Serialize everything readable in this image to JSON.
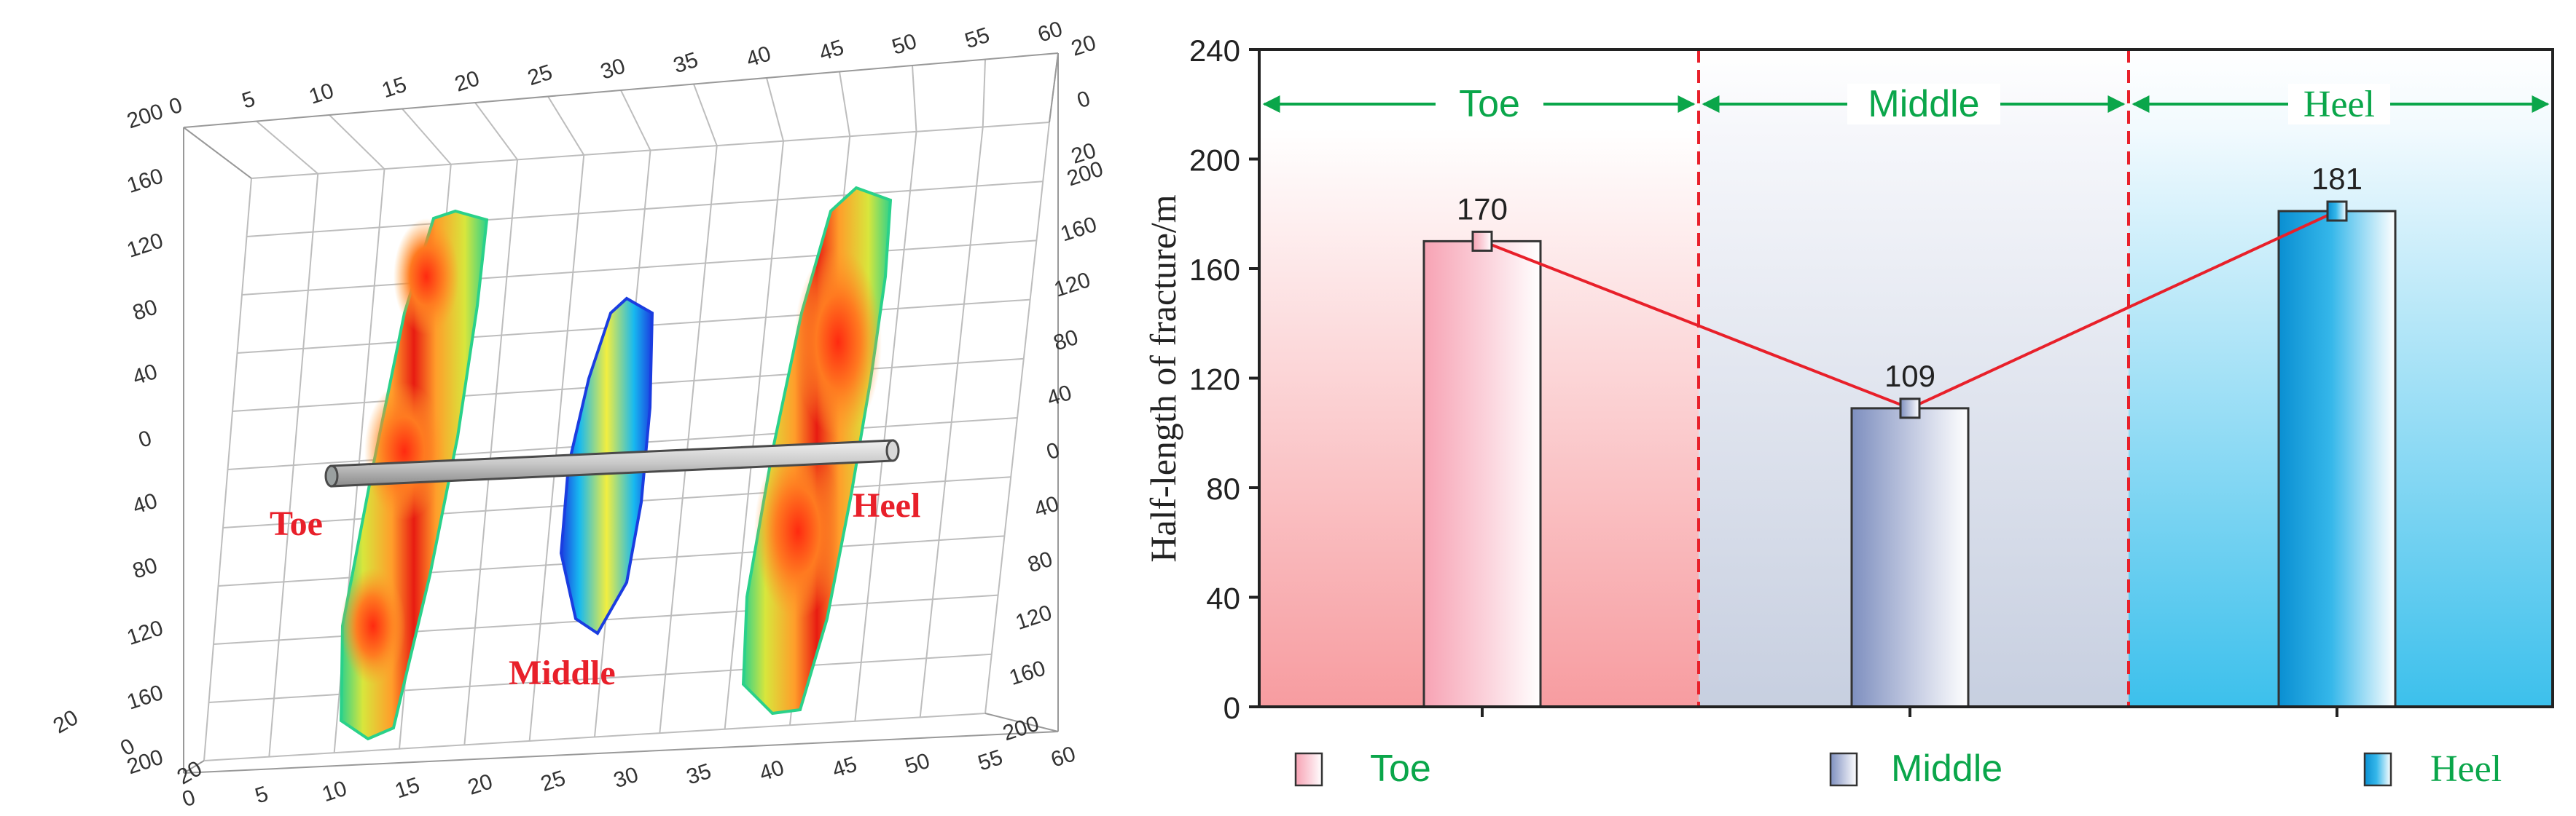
{
  "left_panel": {
    "top_axis_ticks": [
      "0",
      "5",
      "10",
      "15",
      "20",
      "25",
      "30",
      "35",
      "40",
      "45",
      "50",
      "55",
      "60"
    ],
    "bottom_axis_ticks": [
      "0",
      "5",
      "10",
      "15",
      "20",
      "25",
      "30",
      "35",
      "40",
      "45",
      "50",
      "55",
      "60"
    ],
    "left_axis_ticks": [
      "200",
      "160",
      "120",
      "80",
      "40",
      "0",
      "40",
      "80",
      "120",
      "160",
      "200"
    ],
    "right_axis_ticks": [
      "200",
      "160",
      "120",
      "80",
      "40",
      "0",
      "40",
      "80",
      "120",
      "160",
      "200"
    ],
    "right_top_ticks": [
      "20",
      "0",
      "20"
    ],
    "left_bottom_ticks": [
      "20",
      "0",
      "20"
    ],
    "labels": {
      "toe": "Toe",
      "middle": "Middle",
      "heel": "Heel"
    },
    "label_color": "#e8202a"
  },
  "chart_data": {
    "type": "bar",
    "categories": [
      "Toe",
      "Middle",
      "Heel"
    ],
    "values": [
      170,
      109,
      181
    ],
    "data_labels": [
      "170",
      "109",
      "181"
    ],
    "ylabel": "Half-length of  fracture/m",
    "ylim": [
      0,
      240
    ],
    "yticks": [
      "0",
      "40",
      "80",
      "120",
      "160",
      "200",
      "240"
    ],
    "zone_labels": [
      "Toe",
      "Middle",
      "Heel"
    ],
    "legend": [
      "Toe",
      "Middle",
      "Heel"
    ],
    "legend_position": "bottom",
    "grid": false,
    "colors": {
      "toe": "#f8a1ac",
      "middle": "#8c9bc6",
      "heel": "#0f9ad9",
      "line": "#e8202a",
      "arrows": "#0aa64a",
      "divider": "#e8202a"
    }
  }
}
